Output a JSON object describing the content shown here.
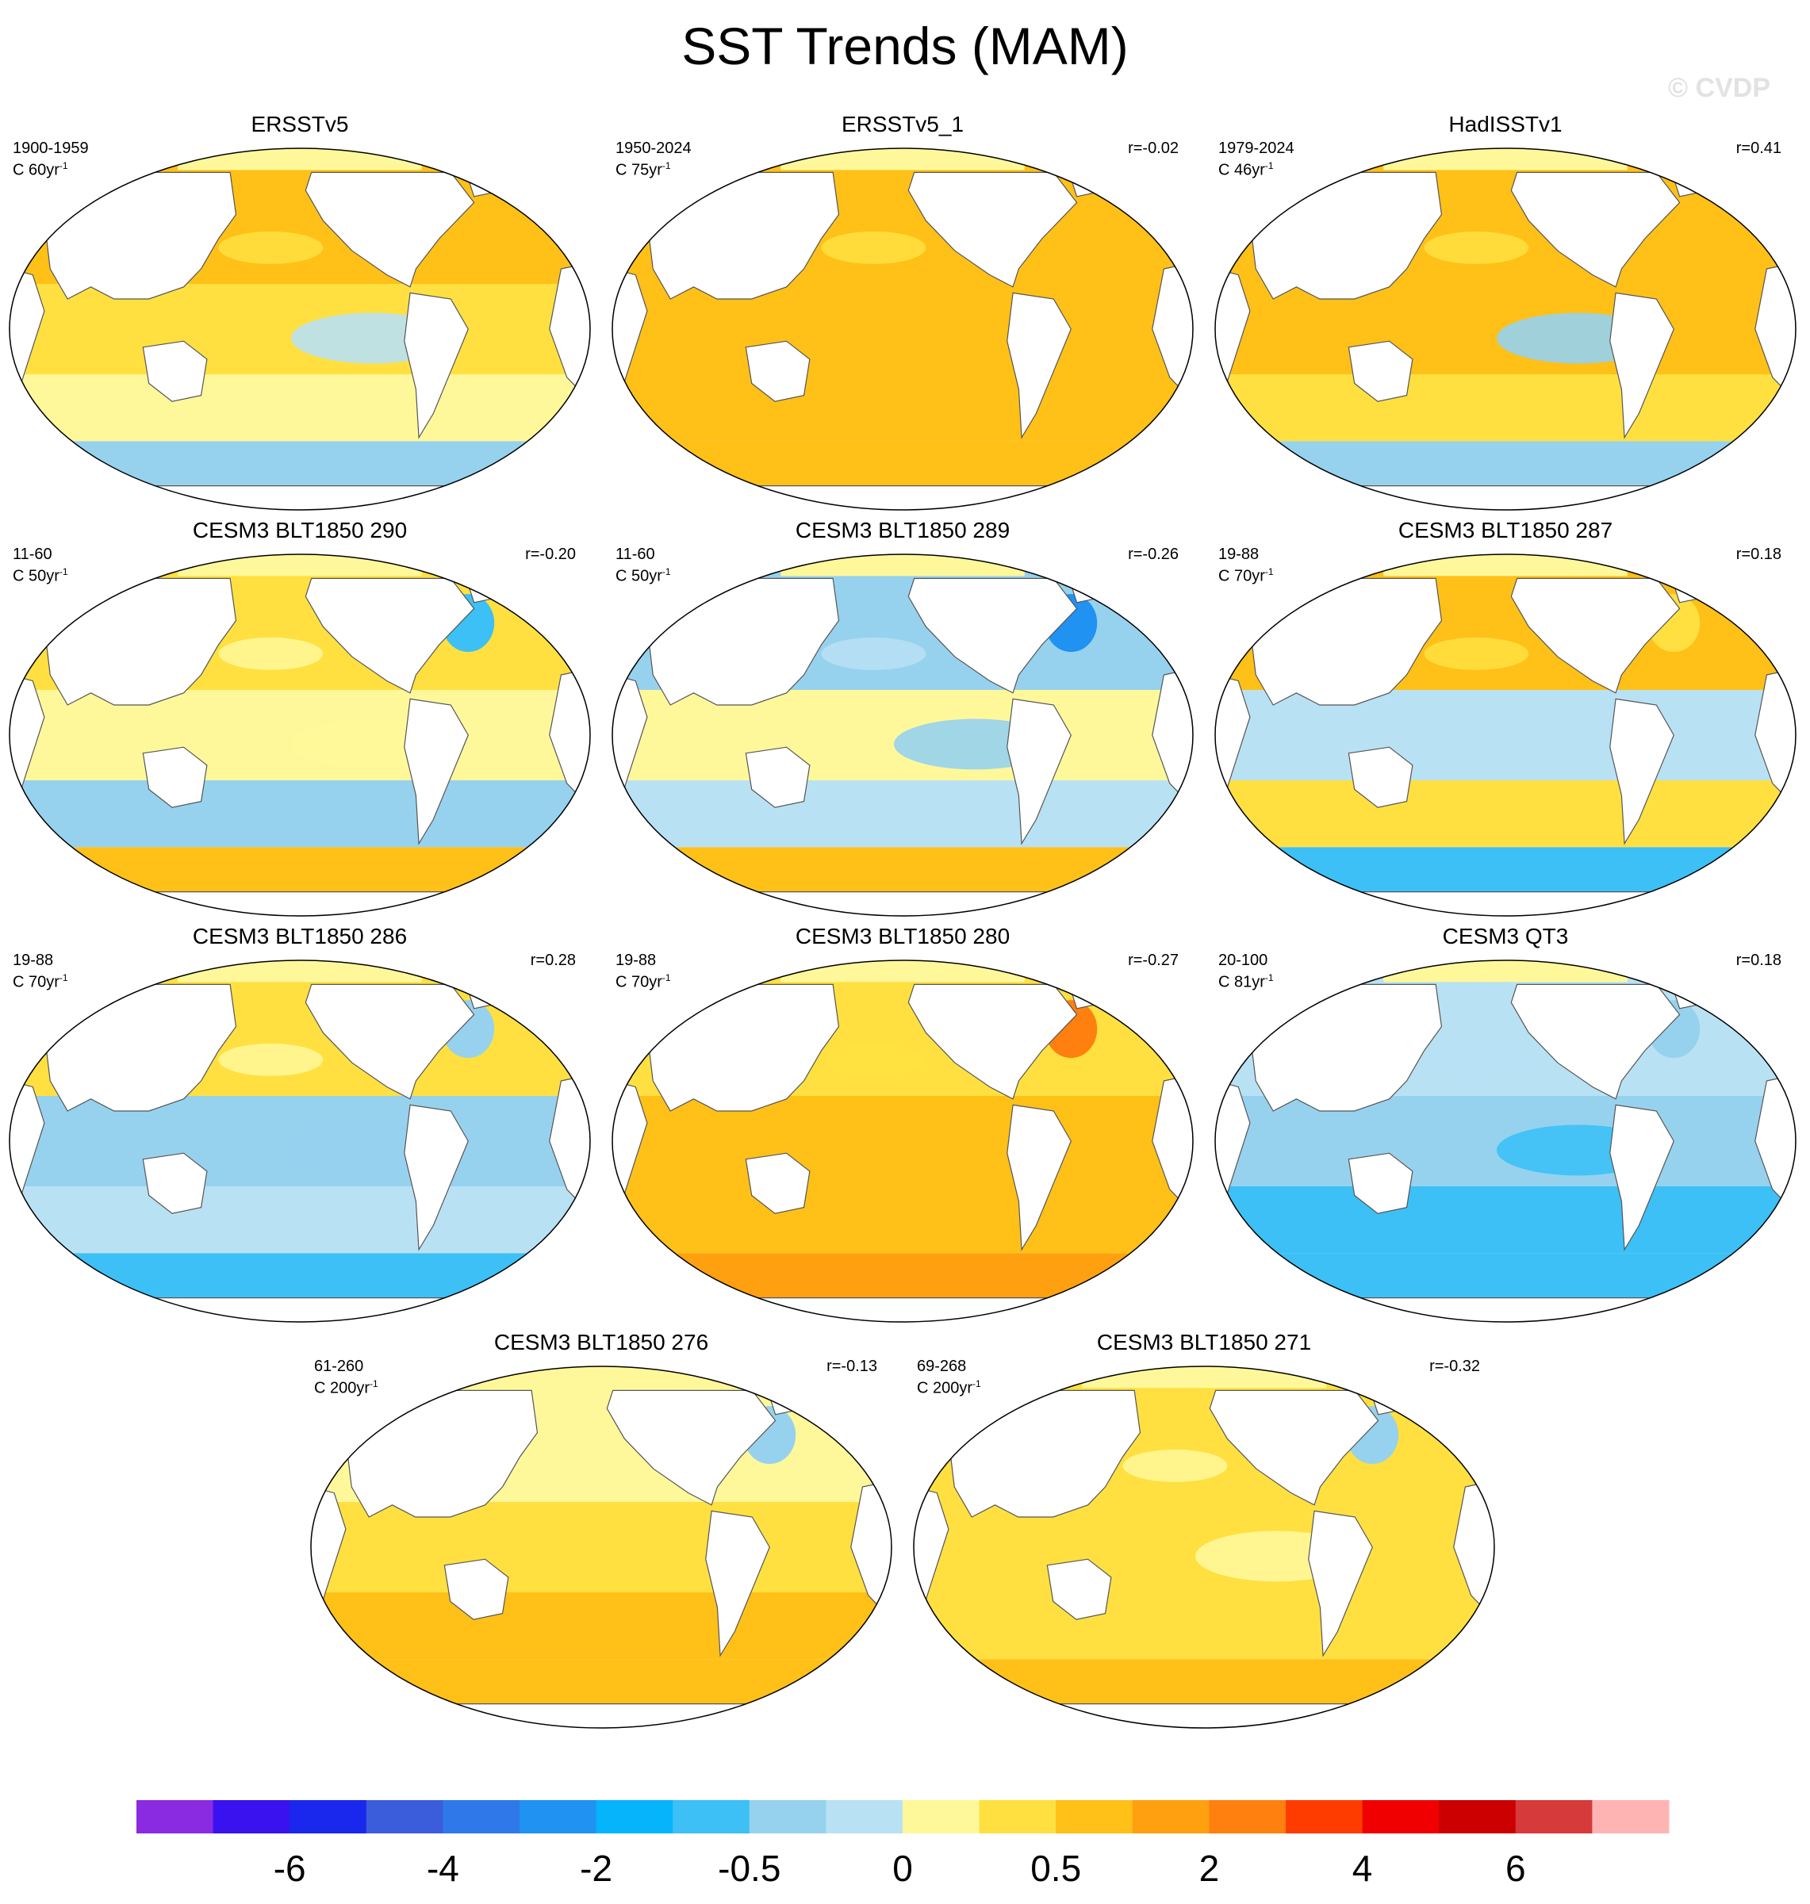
{
  "figure": {
    "title": "SST Trends (MAM)",
    "watermark": "© CVDP"
  },
  "chart_data": {
    "type": "heatmap",
    "title": "SST Trends (MAM)",
    "map_projection": "Robinson (Pacific-centered)",
    "variable": "Sea surface temperature trend",
    "panels": [
      {
        "name": "ERSSTv5",
        "period": "1900-1959",
        "scale_prefix": "C ",
        "scale_value": "60yr",
        "scale_exp": "-1",
        "r": "",
        "fields": {
          "nh": 0.5,
          "tropics": 0.3,
          "sh": 0.1,
          "southern_ocean": -0.3,
          "north_atlantic": 0.5,
          "east_pacific": -0.1
        }
      },
      {
        "name": "ERSSTv5_1",
        "period": "1950-2024",
        "scale_prefix": "C ",
        "scale_value": "75yr",
        "scale_exp": "-1",
        "r": "r=-0.02",
        "fields": {
          "nh": 0.6,
          "tropics": 0.8,
          "sh": 0.8,
          "southern_ocean": 0.5,
          "north_atlantic": 0.7,
          "east_pacific": 0.6
        }
      },
      {
        "name": "HadISSTv1",
        "period": "1979-2024",
        "scale_prefix": "C ",
        "scale_value": "46yr",
        "scale_exp": "-1",
        "r": "r=0.41",
        "fields": {
          "nh": 0.6,
          "tropics": 0.5,
          "sh": 0.4,
          "southern_ocean": -0.3,
          "north_atlantic": 0.6,
          "east_pacific": -0.4
        }
      },
      {
        "name": "CESM3 BLT1850 290",
        "period": "11-60",
        "scale_prefix": "C ",
        "scale_value": "50yr",
        "scale_exp": "-1",
        "r": "r=-0.20",
        "fields": {
          "nh": 0.3,
          "tropics": 0.2,
          "sh": -0.3,
          "southern_ocean": 0.5,
          "north_atlantic": -1.0,
          "east_pacific": 0.2
        }
      },
      {
        "name": "CESM3 BLT1850 289",
        "period": "11-60",
        "scale_prefix": "C ",
        "scale_value": "50yr",
        "scale_exp": "-1",
        "r": "r=-0.26",
        "fields": {
          "nh": -0.3,
          "tropics": 0.1,
          "sh": -0.2,
          "southern_ocean": 0.6,
          "north_atlantic": -2.5,
          "east_pacific": -0.3
        }
      },
      {
        "name": "CESM3 BLT1850 287",
        "period": "19-88",
        "scale_prefix": "C ",
        "scale_value": "70yr",
        "scale_exp": "-1",
        "r": "r=0.18",
        "fields": {
          "nh": 0.5,
          "tropics": -0.2,
          "sh": 0.4,
          "southern_ocean": -0.6,
          "north_atlantic": 0.3,
          "east_pacific": -0.1
        }
      },
      {
        "name": "CESM3 BLT1850 286",
        "period": "19-88",
        "scale_prefix": "C ",
        "scale_value": "70yr",
        "scale_exp": "-1",
        "r": "r=0.28",
        "fields": {
          "nh": 0.3,
          "tropics": -0.3,
          "sh": -0.2,
          "southern_ocean": -0.8,
          "north_atlantic": -0.3,
          "east_pacific": -0.5
        }
      },
      {
        "name": "CESM3 BLT1850 280",
        "period": "19-88",
        "scale_prefix": "C ",
        "scale_value": "70yr",
        "scale_exp": "-1",
        "r": "r=-0.27",
        "fields": {
          "nh": 0.4,
          "tropics": 0.6,
          "sh": 0.5,
          "southern_ocean": 1.5,
          "north_atlantic": 2.5,
          "east_pacific": 0.8
        }
      },
      {
        "name": "CESM3 QT3",
        "period": "20-100",
        "scale_prefix": "C ",
        "scale_value": "81yr",
        "scale_exp": "-1",
        "r": "r=0.18",
        "fields": {
          "nh": -0.2,
          "tropics": -0.4,
          "sh": -0.6,
          "southern_ocean": -1.0,
          "north_atlantic": -0.3,
          "east_pacific": -0.6
        }
      },
      {
        "name": "CESM3 BLT1850 276",
        "period": "61-260",
        "scale_prefix": "C ",
        "scale_value": "200yr",
        "scale_exp": "-1",
        "r": "r=-0.13",
        "fields": {
          "nh": 0.2,
          "tropics": 0.3,
          "sh": 0.5,
          "southern_ocean": 0.8,
          "north_atlantic": -0.3,
          "east_pacific": 0.3
        }
      },
      {
        "name": "CESM3 BLT1850 271",
        "period": "69-268",
        "scale_prefix": "C ",
        "scale_value": "200yr",
        "scale_exp": "-1",
        "r": "r=-0.32",
        "fields": {
          "nh": 0.3,
          "tropics": 0.3,
          "sh": 0.4,
          "southern_ocean": 0.6,
          "north_atlantic": -0.3,
          "east_pacific": 0.2
        }
      }
    ],
    "colorbar": {
      "colors": [
        "#8a2be2",
        "#3a12f0",
        "#1a28ee",
        "#3b5ddc",
        "#2f78ea",
        "#1f92f2",
        "#06b4fb",
        "#3cc0f6",
        "#96d2ee",
        "#b9e1f4",
        "#fff89a",
        "#ffe040",
        "#ffc018",
        "#ffa010",
        "#ff7f0f",
        "#ff3c00",
        "#f00000",
        "#cc0000",
        "#d63a3a",
        "#ffb4b4"
      ],
      "labels": [
        "-6",
        "-4",
        "-2",
        "-0.5",
        "0",
        "0.5",
        "2",
        "4",
        "6"
      ],
      "label_edges": [
        2,
        4,
        6,
        8,
        10,
        12,
        14,
        16,
        18
      ],
      "bins": [
        -8,
        -6,
        -5,
        -4,
        -3,
        -2,
        -1,
        -0.5,
        -0.25,
        0,
        0.25,
        0.5,
        1,
        2,
        3,
        4,
        5,
        6,
        8
      ]
    }
  }
}
